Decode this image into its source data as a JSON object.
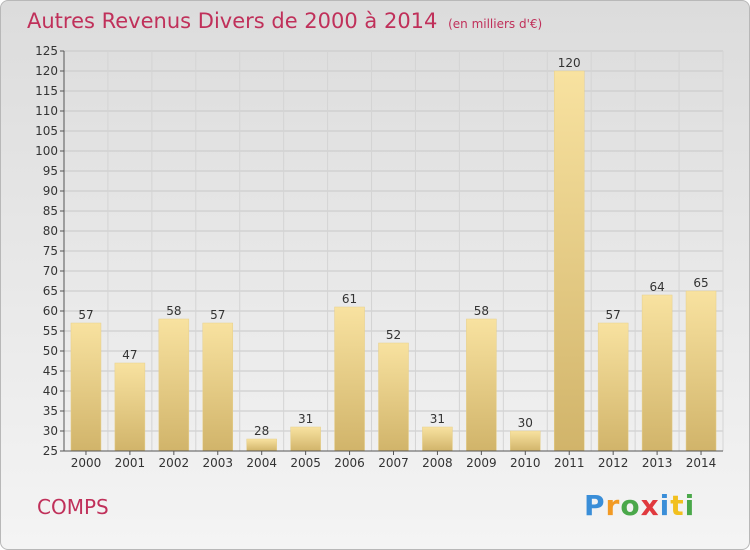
{
  "header": {
    "title": "Autres Revenus Divers de 2000 à 2014",
    "unit": "(en milliers d'€)"
  },
  "footer": {
    "commune": "COMPS",
    "logo": "Proxiti"
  },
  "colors": {
    "title": "#c0305a",
    "bar_light": "#f8e2a0",
    "bar_dark": "#d1b46a"
  },
  "chart_data": {
    "type": "bar",
    "title": "Autres Revenus Divers de 2000 à 2014",
    "subtitle": "(en milliers d'€)",
    "categories": [
      "2000",
      "2001",
      "2002",
      "2003",
      "2004",
      "2005",
      "2006",
      "2007",
      "2008",
      "2009",
      "2010",
      "2011",
      "2012",
      "2013",
      "2014"
    ],
    "values": [
      57,
      47,
      58,
      57,
      28,
      31,
      61,
      52,
      31,
      58,
      30,
      120,
      57,
      64,
      65
    ],
    "ylim": [
      25,
      125
    ],
    "yticks": [
      25,
      30,
      35,
      40,
      45,
      50,
      55,
      60,
      65,
      70,
      75,
      80,
      85,
      90,
      95,
      100,
      105,
      110,
      115,
      120,
      125
    ],
    "grid": true,
    "xlabel": "",
    "ylabel": ""
  }
}
